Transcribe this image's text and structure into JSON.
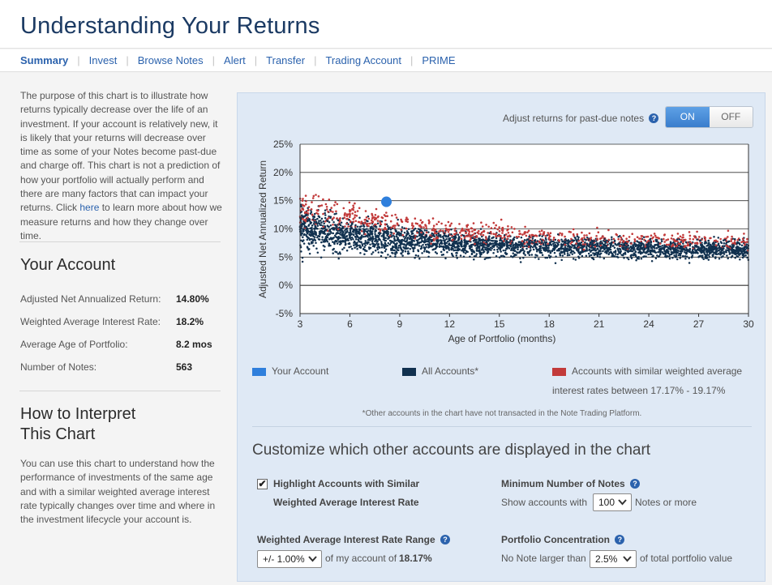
{
  "header": {
    "title": "Understanding Your Returns"
  },
  "nav": {
    "items": [
      {
        "label": "Summary",
        "active": true
      },
      {
        "label": "Invest"
      },
      {
        "label": "Browse Notes"
      },
      {
        "label": "Alert"
      },
      {
        "label": "Transfer"
      },
      {
        "label": "Trading Account"
      },
      {
        "label": "PRIME"
      }
    ]
  },
  "intro": {
    "before_link": "The purpose of this chart is to illustrate how returns typically decrease over the life of an investment. If your account is relatively new, it is likely that your returns will decrease over time as some of your Notes become past-due and charge off. This chart is not a prediction of how your portfolio will actually perform and there are many factors that can impact your returns. Click ",
    "link": "here",
    "after_link": " to learn more about how we measure returns and how they change over time."
  },
  "your_account": {
    "title": "Your Account",
    "stats": [
      {
        "label": "Adjusted Net Annualized Return:",
        "value": "14.80%"
      },
      {
        "label": "Weighted Average Interest Rate:",
        "value": "18.2%"
      },
      {
        "label": "Average Age of Portfolio:",
        "value": "8.2 mos"
      },
      {
        "label": "Number of Notes:",
        "value": "563"
      }
    ]
  },
  "interpret": {
    "title_line1": "How to Interpret",
    "title_line2": "This Chart",
    "body": "You can use this chart to understand how the performance of investments of the same age and with a similar weighted average interest rate typically changes over time and where in the investment lifecycle your account is."
  },
  "adjust": {
    "label": "Adjust returns for past-due notes",
    "on_label": "ON",
    "off_label": "OFF",
    "state": "ON"
  },
  "help_glyph": "?",
  "chart_data": {
    "type": "scatter",
    "xlabel": "Age of Portfolio (months)",
    "ylabel": "Adjusted Net Annualized Return",
    "xlim": [
      3,
      30
    ],
    "ylim": [
      -5,
      25
    ],
    "xticks": [
      3,
      6,
      9,
      12,
      15,
      18,
      21,
      24,
      27,
      30
    ],
    "yticks": [
      -5,
      0,
      5,
      10,
      15,
      20,
      25
    ],
    "ytick_labels": [
      "-5%",
      "0%",
      "5%",
      "10%",
      "15%",
      "20%",
      "25%"
    ],
    "grid": true,
    "legend_position": "bottom",
    "series": [
      {
        "name": "All Accounts*",
        "color": "#11314f",
        "note": "dense point cloud, approx. 8-12% at 3 months declining to 5-8% at 30 months"
      },
      {
        "name": "Accounts with similar weighted average interest rates between 17.17% - 19.17%",
        "color": "#c23a3a",
        "note": "approx. 12-15% at 3-8 months declining to ~7-9% at 30 months"
      },
      {
        "name": "Your Account",
        "color": "#2f7fdc",
        "points": [
          {
            "x": 8.2,
            "y": 14.8
          }
        ]
      }
    ]
  },
  "legend": {
    "your_account": "Your Account",
    "all_accounts": "All Accounts*",
    "similar_line1": "Accounts with similar weighted average",
    "similar_line2": "interest rates between 17.17% - 19.17%",
    "note": "*Other accounts in the chart have not transacted in the Note Trading Platform."
  },
  "colors": {
    "your_account": "#2f7fdc",
    "all_accounts": "#11314f",
    "similar": "#c23a3a",
    "accent": "#2b62ad"
  },
  "customize": {
    "title": "Customize which other accounts are displayed in the chart",
    "highlight_line1": "Highlight Accounts with Similar",
    "highlight_line2": "Weighted Average Interest Rate",
    "highlight_checked": true,
    "check_glyph": "✔",
    "wair_range_label": "Weighted Average Interest Rate Range",
    "wair_range_value": "+/- 1.00%",
    "of_my_account": "of my account of",
    "my_rate": "18.17%",
    "min_notes_label": "Minimum Number of Notes",
    "show_accounts_with": "Show accounts with",
    "min_notes_value": "100",
    "notes_or_more": "Notes or more",
    "concentration_label": "Portfolio Concentration",
    "no_note_larger": "No Note larger than",
    "concentration_value": "2.5%",
    "of_total": "of total portfolio value",
    "chevron_glyph": "⌄"
  }
}
